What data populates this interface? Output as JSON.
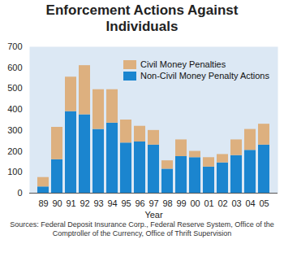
{
  "chart_data": {
    "type": "bar",
    "title": "Enforcement Actions Against Individuals",
    "caption": "Sources: Federal Deposit Insurance Corp., Federal Reserve System, Office of the Comptroller of the Currency, Office of Thrift Supervision",
    "x_label": "Year",
    "categories": [
      "89",
      "90",
      "91",
      "92",
      "93",
      "94",
      "95",
      "96",
      "97",
      "98",
      "99",
      "00",
      "01",
      "02",
      "03",
      "04",
      "05"
    ],
    "series": [
      {
        "name": "Non-Civil Money Penalty Actions",
        "color": "#1b85cf",
        "values": [
          30,
          160,
          390,
          375,
          305,
          335,
          240,
          245,
          230,
          115,
          175,
          170,
          125,
          145,
          180,
          205,
          230
        ]
      },
      {
        "name": "Civil Money Penalties",
        "color": "#ddb07f",
        "values": [
          45,
          155,
          165,
          235,
          190,
          160,
          110,
          75,
          70,
          40,
          80,
          30,
          45,
          40,
          75,
          100,
          100
        ]
      }
    ],
    "stacked": true,
    "legend": "top-right",
    "ylim": [
      0,
      700
    ],
    "yticks": [
      0,
      100,
      200,
      300,
      400,
      500,
      600,
      700
    ],
    "grid": false
  }
}
